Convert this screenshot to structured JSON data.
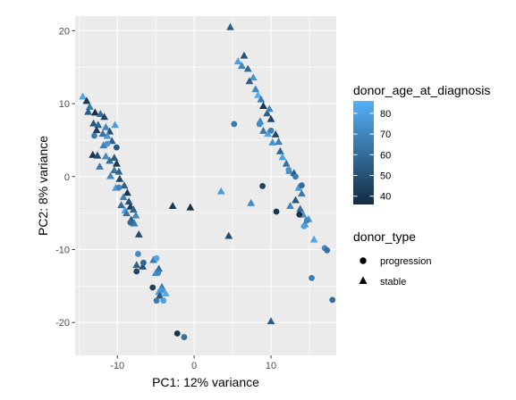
{
  "chart_data": {
    "type": "scatter",
    "title": "",
    "xlabel": "PC1: 12% variance",
    "ylabel": "PC2: 8% variance",
    "xlim": [
      -15.5,
      18.5
    ],
    "ylim": [
      -24.5,
      22
    ],
    "x_ticks": [
      -10,
      0,
      10
    ],
    "x_tick_labels": [
      "-10",
      "0",
      "10"
    ],
    "y_ticks": [
      -20,
      -10,
      0,
      10,
      20
    ],
    "y_tick_labels": [
      "-20",
      "-10",
      "0",
      "10",
      "20"
    ],
    "grid": true,
    "panel_background": "#EBEBEB",
    "grid_color": "#FFFFFF",
    "color_legend": {
      "title": "donor_age_at_diagnosis",
      "min": 36,
      "max": 86,
      "ticks": [
        40,
        50,
        60,
        70,
        80
      ],
      "tick_labels": [
        "40",
        "50",
        "60",
        "70",
        "80"
      ],
      "low_color": "#132B43",
      "high_color": "#56B1F7"
    },
    "shape_legend": {
      "title": "donor_type",
      "items": [
        {
          "label": "progression",
          "shape": "circle"
        },
        {
          "label": "stable",
          "shape": "triangle"
        }
      ]
    },
    "legend_position": "right",
    "points": [
      {
        "x": 4.7,
        "y": 20.5,
        "type": "stable",
        "age": 55
      },
      {
        "x": 6.5,
        "y": 16.6,
        "type": "stable",
        "age": 50
      },
      {
        "x": 5.7,
        "y": 15.8,
        "type": "stable",
        "age": 80
      },
      {
        "x": 6.2,
        "y": 15.2,
        "type": "stable",
        "age": 70
      },
      {
        "x": 7.0,
        "y": 14.8,
        "type": "stable",
        "age": 60
      },
      {
        "x": 7.7,
        "y": 13.6,
        "type": "stable",
        "age": 75
      },
      {
        "x": 7.2,
        "y": 13.1,
        "type": "stable",
        "age": 55
      },
      {
        "x": 8.0,
        "y": 12.0,
        "type": "stable",
        "age": 70
      },
      {
        "x": 8.3,
        "y": 11.2,
        "type": "stable",
        "age": 85
      },
      {
        "x": 8.7,
        "y": 10.6,
        "type": "stable",
        "age": 65
      },
      {
        "x": 9.0,
        "y": 9.7,
        "type": "stable",
        "age": 40
      },
      {
        "x": 9.5,
        "y": 8.7,
        "type": "stable",
        "age": 55
      },
      {
        "x": 9.8,
        "y": 9.3,
        "type": "stable",
        "age": 70
      },
      {
        "x": 10.0,
        "y": 7.9,
        "type": "stable",
        "age": 45
      },
      {
        "x": 8.6,
        "y": 7.6,
        "type": "stable",
        "age": 72
      },
      {
        "x": 9.0,
        "y": 6.3,
        "type": "stable",
        "age": 65
      },
      {
        "x": 9.6,
        "y": 5.9,
        "type": "stable",
        "age": 82
      },
      {
        "x": 10.6,
        "y": 5.8,
        "type": "stable",
        "age": 48
      },
      {
        "x": 11.0,
        "y": 4.8,
        "type": "stable",
        "age": 68
      },
      {
        "x": 10.2,
        "y": 4.7,
        "type": "stable",
        "age": 75
      },
      {
        "x": 11.2,
        "y": 3.5,
        "type": "stable",
        "age": 58
      },
      {
        "x": 11.5,
        "y": 2.7,
        "type": "stable",
        "age": 80
      },
      {
        "x": 12.0,
        "y": 1.8,
        "type": "stable",
        "age": 62
      },
      {
        "x": 12.4,
        "y": 0.8,
        "type": "stable",
        "age": 70
      },
      {
        "x": 13.0,
        "y": 0.5,
        "type": "stable",
        "age": 55
      },
      {
        "x": 13.6,
        "y": -1.5,
        "type": "stable",
        "age": 78
      },
      {
        "x": 14.0,
        "y": -2.3,
        "type": "stable",
        "age": 66
      },
      {
        "x": 13.2,
        "y": -3.2,
        "type": "stable",
        "age": 52
      },
      {
        "x": 12.5,
        "y": -4.0,
        "type": "stable",
        "age": 70
      },
      {
        "x": 13.8,
        "y": -4.4,
        "type": "stable",
        "age": 60
      },
      {
        "x": 14.2,
        "y": -5.2,
        "type": "stable",
        "age": 75
      },
      {
        "x": 14.9,
        "y": -5.8,
        "type": "stable",
        "age": 80
      },
      {
        "x": 14.4,
        "y": -6.5,
        "type": "stable",
        "age": 68
      },
      {
        "x": 15.6,
        "y": -8.6,
        "type": "stable",
        "age": 82
      },
      {
        "x": 3.5,
        "y": -2.0,
        "type": "stable",
        "age": 78
      },
      {
        "x": 7.4,
        "y": -3.6,
        "type": "stable",
        "age": 72
      },
      {
        "x": 4.5,
        "y": -8.1,
        "type": "stable",
        "age": 48
      },
      {
        "x": 10.0,
        "y": -19.8,
        "type": "stable",
        "age": 55
      },
      {
        "x": 5.2,
        "y": 7.2,
        "type": "progression",
        "age": 65
      },
      {
        "x": 8.5,
        "y": 7.2,
        "type": "progression",
        "age": 72
      },
      {
        "x": 10.0,
        "y": 6.3,
        "type": "progression",
        "age": 68
      },
      {
        "x": 13.2,
        "y": 0.0,
        "type": "progression",
        "age": 66
      },
      {
        "x": 12.3,
        "y": 0.9,
        "type": "progression",
        "age": 74
      },
      {
        "x": 14.0,
        "y": -1.2,
        "type": "progression",
        "age": 60
      },
      {
        "x": 8.9,
        "y": -1.3,
        "type": "progression",
        "age": 45
      },
      {
        "x": 10.7,
        "y": -4.8,
        "type": "progression",
        "age": 40
      },
      {
        "x": 13.7,
        "y": -5.2,
        "type": "progression",
        "age": 38
      },
      {
        "x": 14.7,
        "y": -6.0,
        "type": "progression",
        "age": 70
      },
      {
        "x": 14.3,
        "y": -6.8,
        "type": "progression",
        "age": 80
      },
      {
        "x": 17.0,
        "y": -9.8,
        "type": "progression",
        "age": 70
      },
      {
        "x": 17.3,
        "y": -10.1,
        "type": "progression",
        "age": 62
      },
      {
        "x": 15.3,
        "y": -13.9,
        "type": "progression",
        "age": 66
      },
      {
        "x": 18.0,
        "y": -16.9,
        "type": "progression",
        "age": 60
      },
      {
        "x": -14.5,
        "y": 11.0,
        "type": "stable",
        "age": 82
      },
      {
        "x": -14.0,
        "y": 10.4,
        "type": "stable",
        "age": 40
      },
      {
        "x": -13.6,
        "y": 9.6,
        "type": "stable",
        "age": 65
      },
      {
        "x": -13.8,
        "y": 8.9,
        "type": "stable",
        "age": 55
      },
      {
        "x": -12.9,
        "y": 8.8,
        "type": "stable",
        "age": 38
      },
      {
        "x": -12.2,
        "y": 8.6,
        "type": "stable",
        "age": 60
      },
      {
        "x": -11.7,
        "y": 8.2,
        "type": "stable",
        "age": 45
      },
      {
        "x": -13.1,
        "y": 7.3,
        "type": "stable",
        "age": 52
      },
      {
        "x": -12.5,
        "y": 7.1,
        "type": "stable",
        "age": 58
      },
      {
        "x": -10.3,
        "y": 7.1,
        "type": "stable",
        "age": 80
      },
      {
        "x": -11.5,
        "y": 6.8,
        "type": "stable",
        "age": 70
      },
      {
        "x": -11.0,
        "y": 6.2,
        "type": "stable",
        "age": 50
      },
      {
        "x": -12.7,
        "y": 6.4,
        "type": "stable",
        "age": 44
      },
      {
        "x": -11.9,
        "y": 5.9,
        "type": "stable",
        "age": 62
      },
      {
        "x": -11.3,
        "y": 5.6,
        "type": "stable",
        "age": 75
      },
      {
        "x": -10.7,
        "y": 4.9,
        "type": "stable",
        "age": 56
      },
      {
        "x": -11.8,
        "y": 4.3,
        "type": "stable",
        "age": 68
      },
      {
        "x": -13.2,
        "y": 3.0,
        "type": "stable",
        "age": 40
      },
      {
        "x": -12.6,
        "y": 2.9,
        "type": "stable",
        "age": 48
      },
      {
        "x": -11.5,
        "y": 2.8,
        "type": "stable",
        "age": 72
      },
      {
        "x": -11.0,
        "y": 2.2,
        "type": "stable",
        "age": 60
      },
      {
        "x": -10.4,
        "y": 2.6,
        "type": "stable",
        "age": 54
      },
      {
        "x": -10.1,
        "y": 1.8,
        "type": "stable",
        "age": 42
      },
      {
        "x": -12.3,
        "y": 1.4,
        "type": "stable",
        "age": 66
      },
      {
        "x": -10.4,
        "y": 0.9,
        "type": "stable",
        "age": 63
      },
      {
        "x": -9.8,
        "y": 0.7,
        "type": "stable",
        "age": 58
      },
      {
        "x": -10.9,
        "y": 0.1,
        "type": "stable",
        "age": 70
      },
      {
        "x": -9.7,
        "y": -0.3,
        "type": "stable",
        "age": 46
      },
      {
        "x": -9.1,
        "y": -1.2,
        "type": "stable",
        "age": 55
      },
      {
        "x": -10.2,
        "y": -1.5,
        "type": "stable",
        "age": 78
      },
      {
        "x": -8.7,
        "y": -2.2,
        "type": "stable",
        "age": 40
      },
      {
        "x": -9.2,
        "y": -2.8,
        "type": "stable",
        "age": 68
      },
      {
        "x": -8.5,
        "y": -3.4,
        "type": "stable",
        "age": 50
      },
      {
        "x": -9.5,
        "y": -3.9,
        "type": "stable",
        "age": 60
      },
      {
        "x": -8.3,
        "y": -4.1,
        "type": "stable",
        "age": 44
      },
      {
        "x": -9.0,
        "y": -4.6,
        "type": "stable",
        "age": 80
      },
      {
        "x": -7.9,
        "y": -4.5,
        "type": "stable",
        "age": 57
      },
      {
        "x": -8.8,
        "y": -5.0,
        "type": "stable",
        "age": 62
      },
      {
        "x": -7.6,
        "y": -5.3,
        "type": "stable",
        "age": 70
      },
      {
        "x": -8.2,
        "y": -5.9,
        "type": "stable",
        "age": 52
      },
      {
        "x": -7.8,
        "y": -6.4,
        "type": "stable",
        "age": 66
      },
      {
        "x": -7.2,
        "y": -7.9,
        "type": "stable",
        "age": 48
      },
      {
        "x": -5.3,
        "y": -11.4,
        "type": "stable",
        "age": 64
      },
      {
        "x": -7.5,
        "y": -12.1,
        "type": "stable",
        "age": 56
      },
      {
        "x": -6.7,
        "y": -12.3,
        "type": "stable",
        "age": 50
      },
      {
        "x": -4.6,
        "y": -12.6,
        "type": "stable",
        "age": 60
      },
      {
        "x": -5.0,
        "y": -13.2,
        "type": "stable",
        "age": 72
      },
      {
        "x": -4.2,
        "y": -15.1,
        "type": "stable",
        "age": 68
      },
      {
        "x": -4.6,
        "y": -15.8,
        "type": "stable",
        "age": 78
      },
      {
        "x": -3.7,
        "y": -16.0,
        "type": "stable",
        "age": 84
      },
      {
        "x": -4.5,
        "y": -16.3,
        "type": "stable",
        "age": 54
      },
      {
        "x": -2.8,
        "y": -4.0,
        "type": "stable",
        "age": 40
      },
      {
        "x": -0.5,
        "y": -4.2,
        "type": "stable",
        "age": 38
      },
      {
        "x": -13.0,
        "y": 5.6,
        "type": "progression",
        "age": 65
      },
      {
        "x": -11.3,
        "y": 4.5,
        "type": "progression",
        "age": 76
      },
      {
        "x": -10.1,
        "y": 4.0,
        "type": "progression",
        "age": 52
      },
      {
        "x": -9.8,
        "y": -1.5,
        "type": "progression",
        "age": 70
      },
      {
        "x": -8.3,
        "y": -6.3,
        "type": "progression",
        "age": 60
      },
      {
        "x": -7.3,
        "y": -10.6,
        "type": "progression",
        "age": 72
      },
      {
        "x": -6.6,
        "y": -11.8,
        "type": "progression",
        "age": 58
      },
      {
        "x": -7.5,
        "y": -13.0,
        "type": "progression",
        "age": 46
      },
      {
        "x": -4.9,
        "y": -11.2,
        "type": "progression",
        "age": 82
      },
      {
        "x": -4.7,
        "y": -13.2,
        "type": "progression",
        "age": 70
      },
      {
        "x": -5.4,
        "y": -15.2,
        "type": "progression",
        "age": 44
      },
      {
        "x": -4.2,
        "y": -15.6,
        "type": "progression",
        "age": 76
      },
      {
        "x": -4.9,
        "y": -17.0,
        "type": "progression",
        "age": 66
      },
      {
        "x": -4.0,
        "y": -17.0,
        "type": "progression",
        "age": 80
      },
      {
        "x": -2.2,
        "y": -21.5,
        "type": "progression",
        "age": 40
      },
      {
        "x": -1.3,
        "y": -22.0,
        "type": "progression",
        "age": 62
      }
    ]
  }
}
